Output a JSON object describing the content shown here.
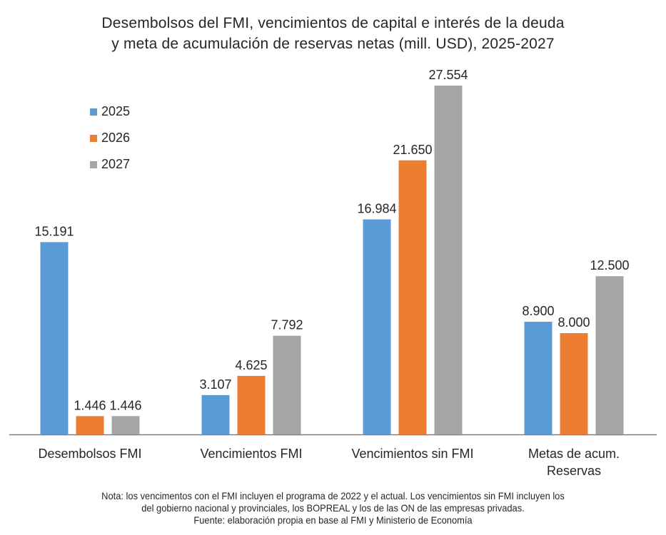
{
  "chart_data": {
    "type": "bar",
    "title": [
      "Desembolsos del FMI, vencimientos de capital e interés de la deuda",
      "y meta de acumulación de reservas netas (mill. USD), 2025-2027"
    ],
    "categories": [
      "Desembolsos FMI",
      "Vencimientos FMI",
      "Vencimientos sin FMI",
      "Metas de acum. Reservas"
    ],
    "series": [
      {
        "name": "2025",
        "color": "#5b9bd5",
        "values": [
          15191,
          3107,
          16984,
          8900
        ],
        "labels": [
          "15.191",
          "3.107",
          "16.984",
          "8.900"
        ]
      },
      {
        "name": "2026",
        "color": "#ed7d31",
        "values": [
          1446,
          4625,
          21650,
          8000
        ],
        "labels": [
          "1.446",
          "4.625",
          "21.650",
          "8.000"
        ]
      },
      {
        "name": "2027",
        "color": "#a5a5a5",
        "values": [
          1446,
          7792,
          27554,
          12500
        ],
        "labels": [
          "1.446",
          "7.792",
          "27.554",
          "12.500"
        ]
      }
    ],
    "xlabel": "",
    "ylabel": "",
    "ylim": [
      0,
      27554
    ],
    "grid": false,
    "legend": "top-left"
  },
  "note": [
    "Nota: los vencimentos con el FMI incluyen el programa de 2022 y el actual. Los vencimientos sin FMI incluyen los",
    "del gobierno nacional y provinciales, los BOPREAL y los de las ON de las empresas privadas.",
    "Fuente: elaboración propia en base al FMI y Ministerio de Economía"
  ]
}
